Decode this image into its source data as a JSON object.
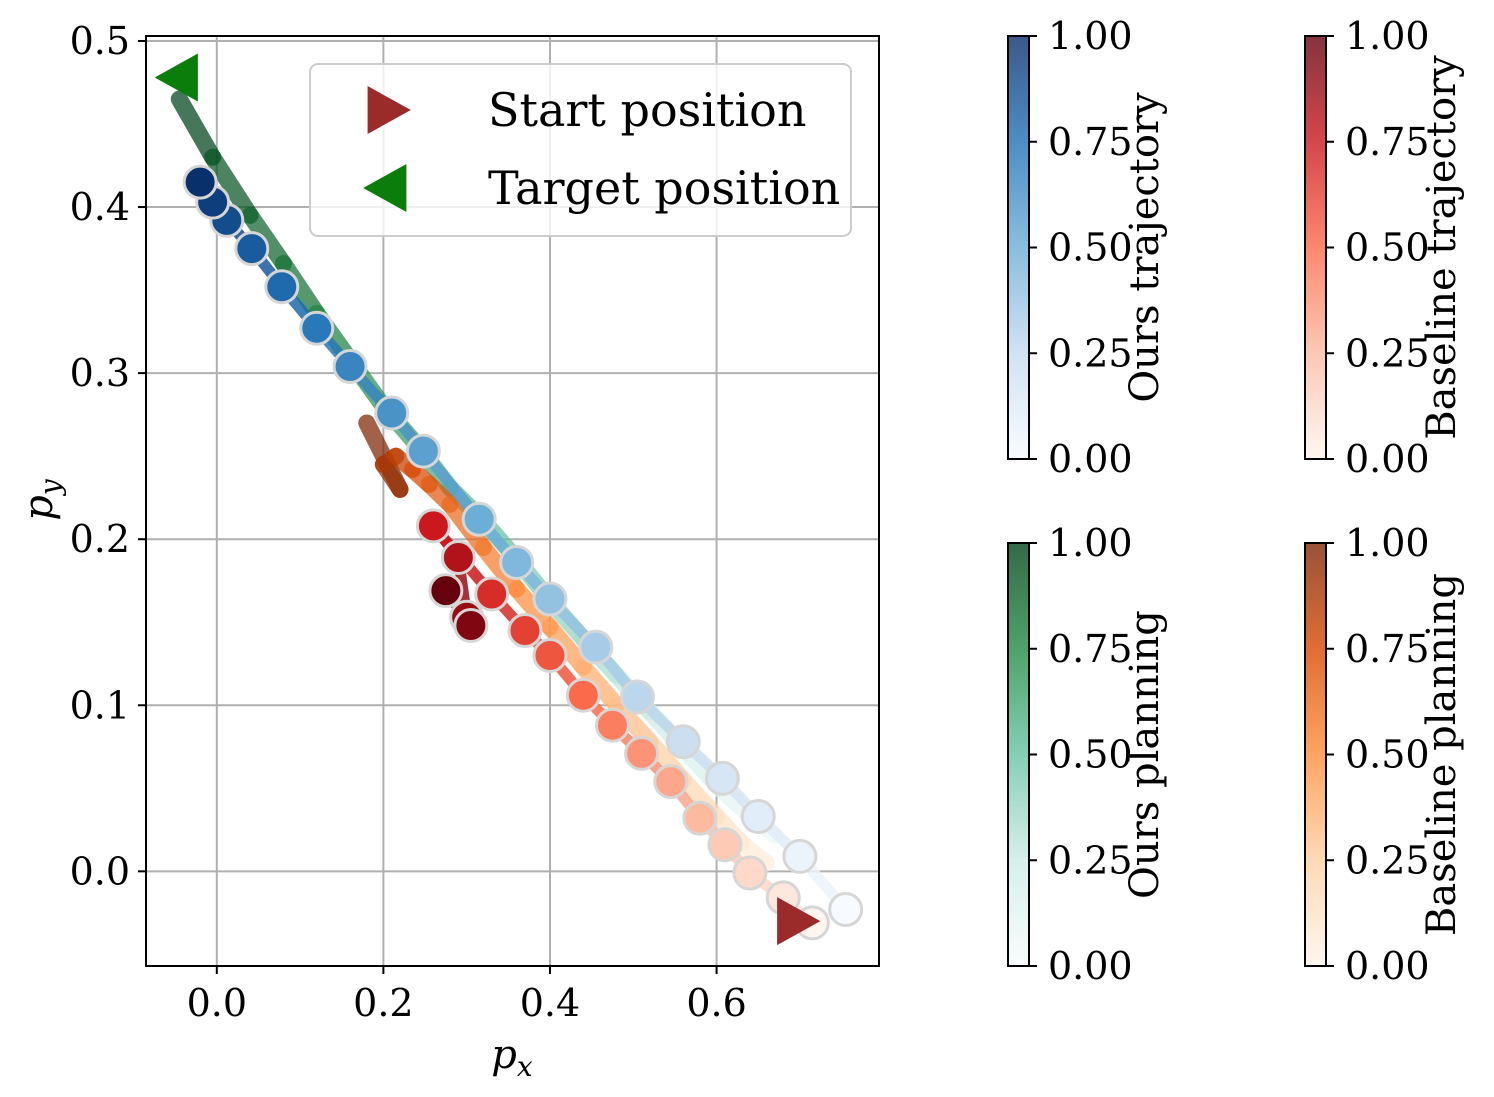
{
  "chart_data": {
    "type": "scatter",
    "title": "",
    "xlabel": "p_x",
    "ylabel": "p_y",
    "xlim": [
      -0.085,
      0.795
    ],
    "ylim": [
      -0.057,
      0.503
    ],
    "xticks": [
      0.0,
      0.2,
      0.4,
      0.6
    ],
    "yticks": [
      0.0,
      0.1,
      0.2,
      0.3,
      0.4,
      0.5
    ],
    "xtick_labels": [
      "0.0",
      "0.2",
      "0.4",
      "0.6"
    ],
    "ytick_labels": [
      "0.0",
      "0.1",
      "0.2",
      "0.3",
      "0.4",
      "0.5"
    ],
    "grid": true,
    "legend": {
      "placement": "top-right",
      "entries": [
        {
          "label": "Start position",
          "marker": "triangle-right",
          "color": "#9b2a2a"
        },
        {
          "label": "Target position",
          "marker": "triangle-left",
          "color": "#0a7d0a"
        }
      ]
    },
    "start": {
      "x": 0.69,
      "y": -0.03
    },
    "target": {
      "x": -0.04,
      "y": 0.478
    },
    "series": [
      {
        "name": "Ours trajectory",
        "kind": "markers+line",
        "colormap": "Blues",
        "x": [
          -0.02,
          -0.005,
          0.012,
          0.042,
          0.078,
          0.12,
          0.16,
          0.21,
          0.248,
          0.315,
          0.36,
          0.4,
          0.455,
          0.505,
          0.56,
          0.607,
          0.65,
          0.7,
          0.755
        ],
        "y": [
          0.415,
          0.403,
          0.392,
          0.375,
          0.352,
          0.327,
          0.304,
          0.276,
          0.253,
          0.212,
          0.186,
          0.164,
          0.135,
          0.105,
          0.078,
          0.056,
          0.033,
          0.009,
          -0.023
        ]
      },
      {
        "name": "Baseline trajectory",
        "kind": "markers+line",
        "colormap": "Reds",
        "x": [
          0.275,
          0.305,
          0.3,
          0.29,
          0.26,
          0.33,
          0.37,
          0.4,
          0.44,
          0.475,
          0.51,
          0.545,
          0.58,
          0.61,
          0.64,
          0.68,
          0.715
        ],
        "y": [
          0.169,
          0.148,
          0.153,
          0.189,
          0.208,
          0.167,
          0.145,
          0.13,
          0.106,
          0.088,
          0.071,
          0.054,
          0.032,
          0.016,
          -0.001,
          -0.016,
          -0.031
        ]
      },
      {
        "name": "Ours planning",
        "kind": "line",
        "colormap": "Greens",
        "x": [
          -0.045,
          -0.005,
          0.04,
          0.08,
          0.12,
          0.16,
          0.2,
          0.24,
          0.28,
          0.32,
          0.36,
          0.4,
          0.44,
          0.48,
          0.52,
          0.56,
          0.6,
          0.635,
          0.67
        ],
        "y": [
          0.465,
          0.43,
          0.395,
          0.366,
          0.336,
          0.308,
          0.28,
          0.257,
          0.231,
          0.211,
          0.188,
          0.163,
          0.14,
          0.118,
          0.096,
          0.074,
          0.052,
          0.036,
          0.022
        ]
      },
      {
        "name": "Baseline planning",
        "kind": "line",
        "colormap": "Oranges",
        "x": [
          0.18,
          0.22,
          0.2,
          0.215,
          0.235,
          0.255,
          0.28,
          0.32,
          0.36,
          0.4,
          0.44,
          0.48,
          0.52,
          0.56,
          0.6,
          0.63,
          0.66
        ],
        "y": [
          0.27,
          0.23,
          0.245,
          0.25,
          0.242,
          0.233,
          0.221,
          0.195,
          0.17,
          0.147,
          0.123,
          0.1,
          0.078,
          0.055,
          0.033,
          0.017,
          0.005
        ]
      }
    ],
    "colorbars": [
      {
        "label": "Ours trajectory",
        "colormap": "Blues",
        "ticks": [
          "0.00",
          "0.25",
          "0.50",
          "0.75",
          "1.00"
        ],
        "stops": [
          "#f7fbff",
          "#c6dbef",
          "#6baed6",
          "#2171b5",
          "#08306b"
        ]
      },
      {
        "label": "Baseline trajectory",
        "colormap": "Reds",
        "ticks": [
          "0.00",
          "0.25",
          "0.50",
          "0.75",
          "1.00"
        ],
        "stops": [
          "#fff5f0",
          "#fcbba1",
          "#fb6a4a",
          "#cb181d",
          "#67000d"
        ]
      },
      {
        "label": "Ours planning",
        "colormap": "Greens",
        "ticks": [
          "0.00",
          "0.25",
          "0.50",
          "0.75",
          "1.00"
        ],
        "stops": [
          "#f7fcfd",
          "#ccece6",
          "#66c2a4",
          "#238b45",
          "#00441b"
        ]
      },
      {
        "label": "Baseline planning",
        "colormap": "Oranges",
        "ticks": [
          "0.00",
          "0.25",
          "0.50",
          "0.75",
          "1.00"
        ],
        "stops": [
          "#fff5eb",
          "#fdd0a2",
          "#fd8d3c",
          "#d94801",
          "#7f2704"
        ]
      }
    ]
  }
}
